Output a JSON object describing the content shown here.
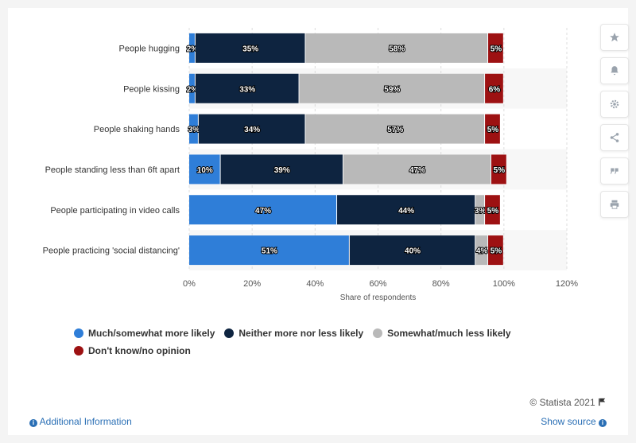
{
  "chart_data": {
    "type": "bar",
    "orientation": "horizontal",
    "stacked": true,
    "categories": [
      "People hugging",
      "People kissing",
      "People shaking hands",
      "People standing less than 6ft apart",
      "People participating in video calls",
      "People practicing 'social distancing'"
    ],
    "series": [
      {
        "name": "Much/somewhat more likely",
        "color": "#2f7ed8",
        "values": [
          2,
          2,
          3,
          10,
          47,
          51
        ]
      },
      {
        "name": "Neither more nor less likely",
        "color": "#0e2440",
        "values": [
          35,
          33,
          34,
          39,
          44,
          40
        ]
      },
      {
        "name": "Somewhat/much less likely",
        "color": "#b9b9b9",
        "values": [
          58,
          59,
          57,
          47,
          3,
          4
        ]
      },
      {
        "name": "Don't know/no opinion",
        "color": "#9d1112",
        "values": [
          5,
          6,
          5,
          5,
          5,
          5
        ]
      }
    ],
    "xlabel": "Share of respondents",
    "ylabel": "",
    "xlim": [
      0,
      120
    ],
    "ticks": [
      "0%",
      "20%",
      "40%",
      "60%",
      "80%",
      "100%",
      "120%"
    ],
    "grid": true,
    "legend_position": "bottom"
  },
  "toolbar": {
    "icons": [
      "star-icon",
      "bell-icon",
      "gear-icon",
      "share-icon",
      "quote-icon",
      "print-icon"
    ]
  },
  "footer": {
    "additional_info": "Additional Information",
    "show_source": "Show source",
    "credit": "© Statista 2021"
  }
}
